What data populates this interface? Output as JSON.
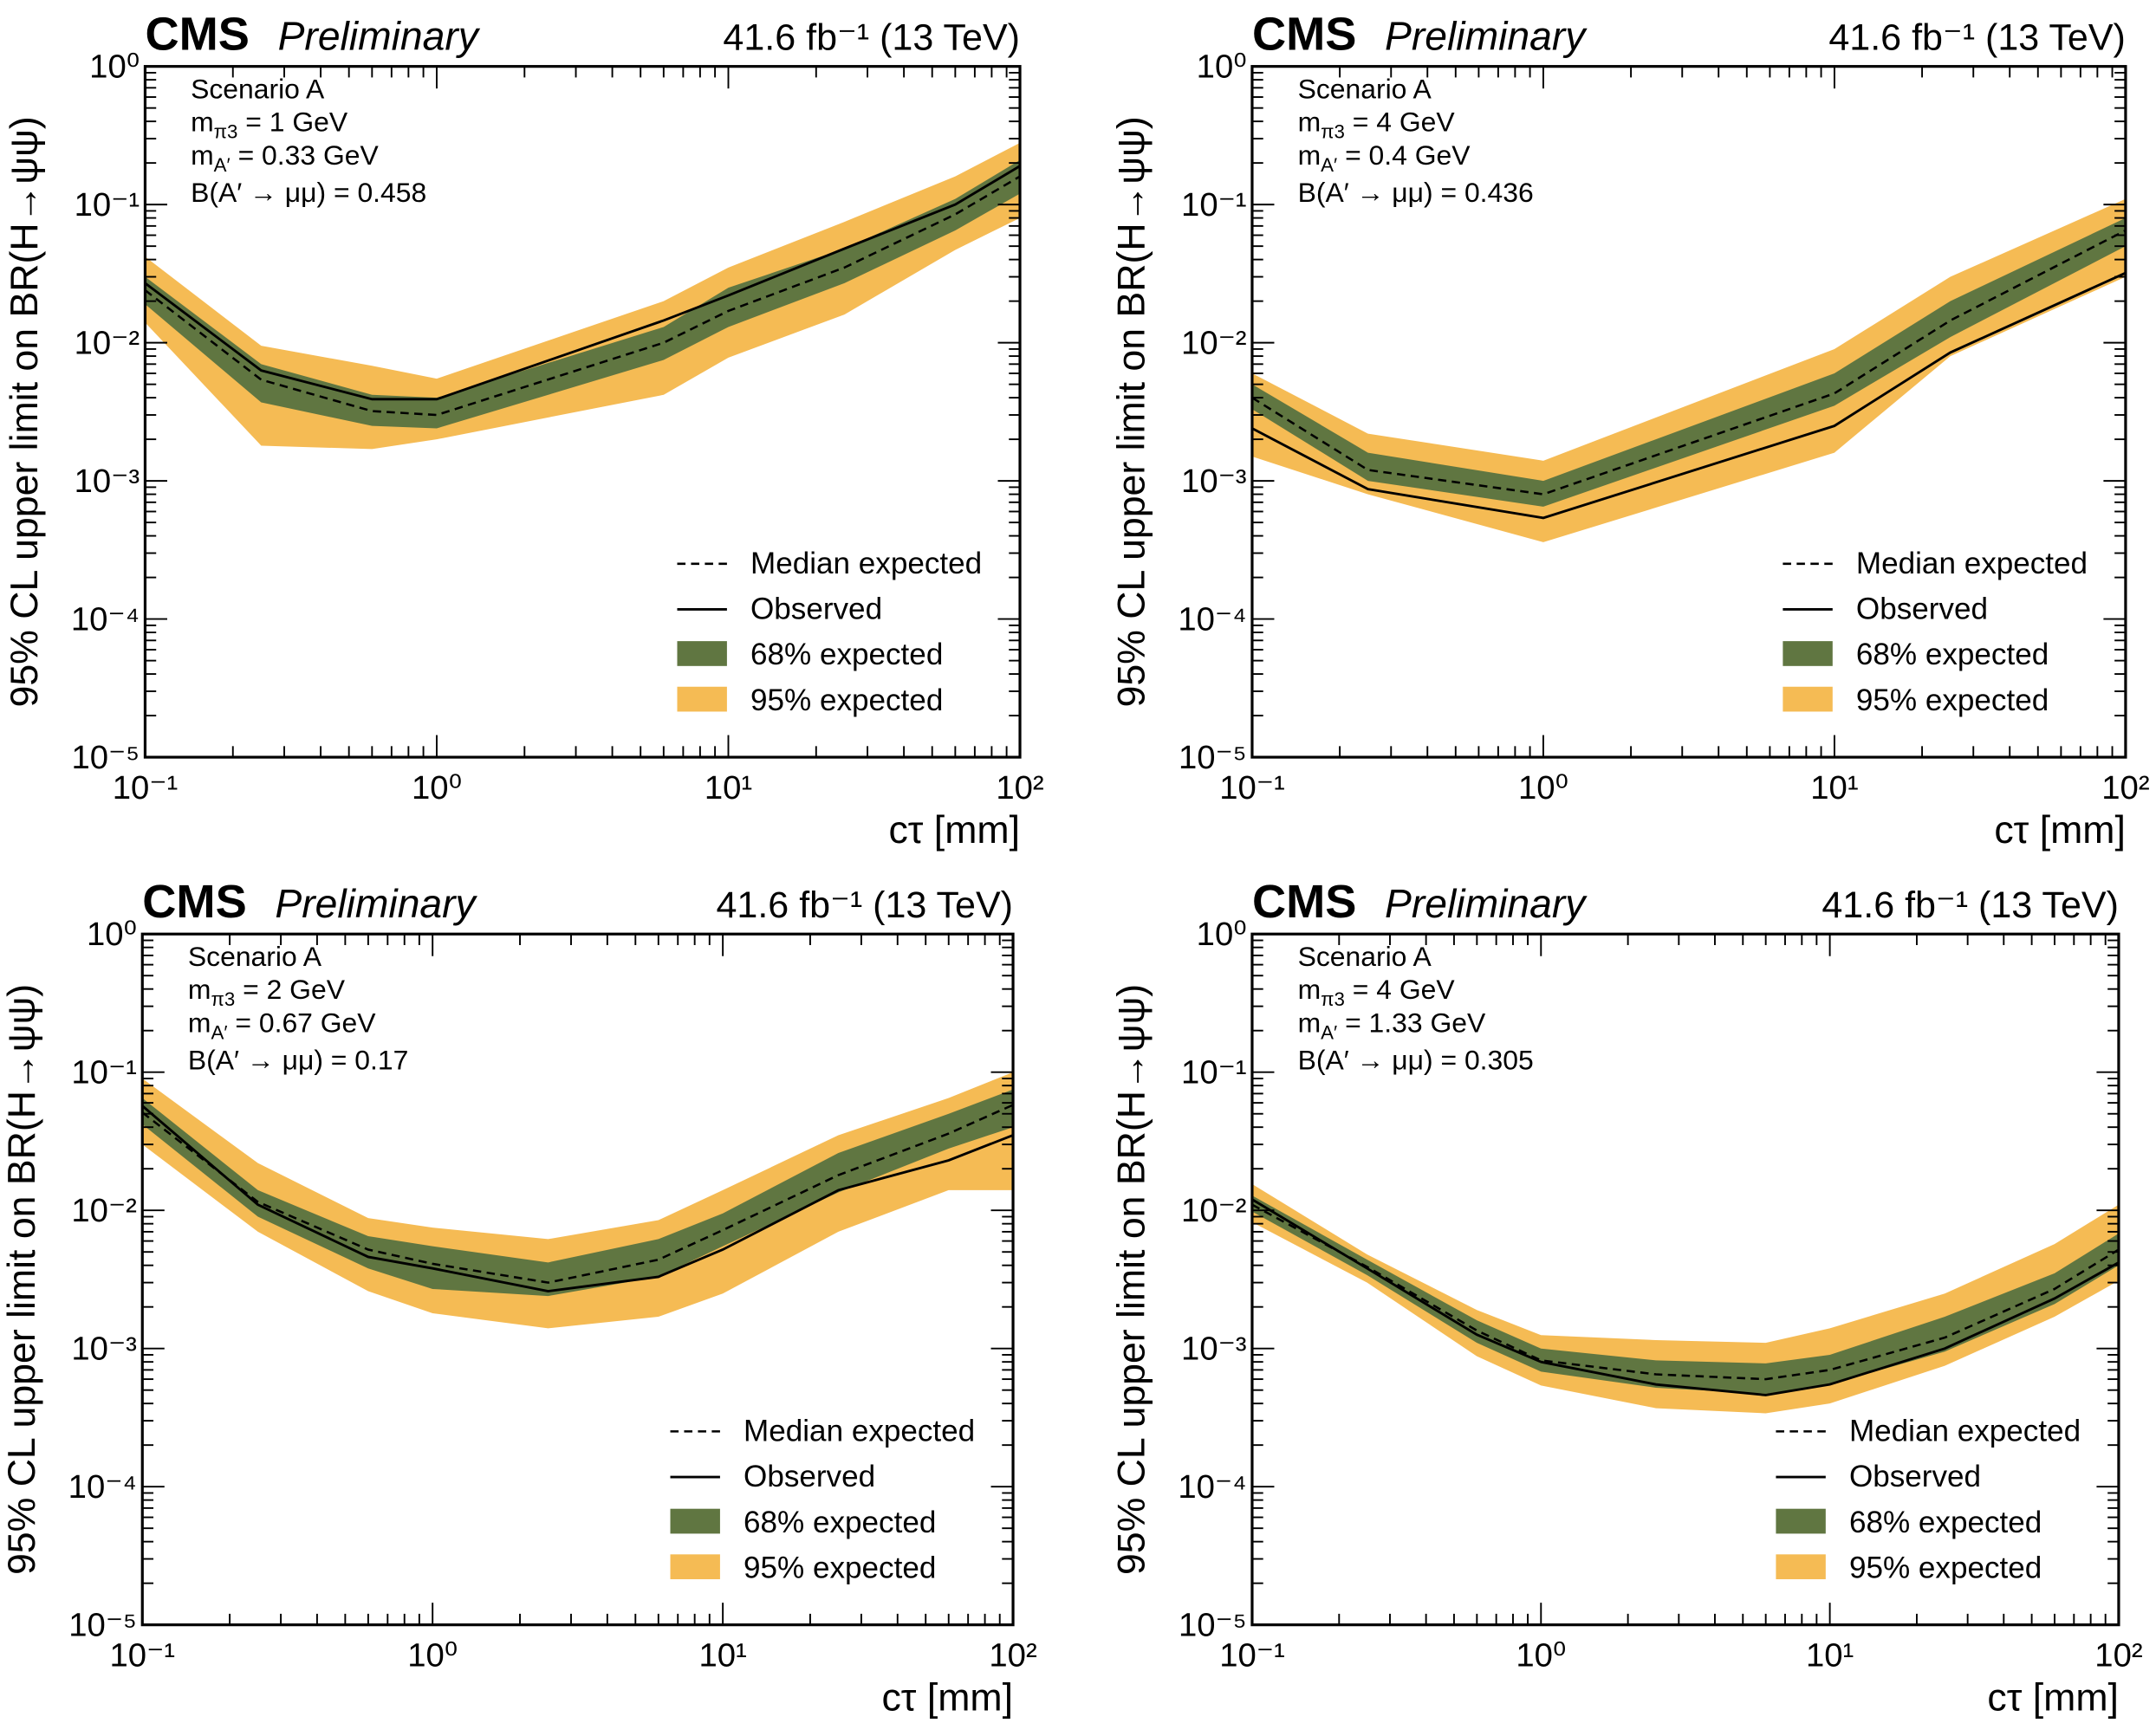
{
  "common": {
    "experiment": "CMS",
    "status": "Preliminary",
    "lumi": "41.6 fb⁻¹ (13 TeV)",
    "ylabel": "95% CL upper limit on BR(H→ψψ)",
    "xlabel": "cτ [mm]",
    "x_ticks": [
      "10⁻¹",
      "10⁰",
      "10¹",
      "10²"
    ],
    "y_ticks": [
      "10⁻⁵",
      "10⁻⁴",
      "10⁻³",
      "10⁻²",
      "10⁻¹",
      "10⁰"
    ],
    "mass_symbol": "m",
    "pi3_sub": "π3",
    "A_sub": "A′",
    "br_label": "B(A′ → μμ) = ",
    "legend": [
      "Median expected",
      "Observed",
      "68% expected",
      "95% expected"
    ],
    "colors": {
      "band68": "#607641",
      "band95": "#F5BB54",
      "lines": "#000000"
    }
  },
  "chart_data": [
    {
      "type": "line",
      "xscale": "log",
      "yscale": "log",
      "xlim": [
        0.1,
        100
      ],
      "ylim": [
        1e-05,
        1
      ],
      "legend_position": "bottom-right",
      "annotation": {
        "scenario": "Scenario A",
        "m_pi3": "= 1 GeV",
        "m_A": "= 0.33 GeV",
        "br": "0.458"
      },
      "x": [
        0.1,
        0.25,
        0.6,
        1,
        6,
        10,
        25,
        60,
        100
      ],
      "expected": [
        0.024,
        0.0054,
        0.0032,
        0.003,
        0.01,
        0.017,
        0.035,
        0.085,
        0.16
      ],
      "observed": [
        0.027,
        0.0063,
        0.0039,
        0.0039,
        0.0145,
        0.022,
        0.048,
        0.1,
        0.19
      ],
      "band68_lo": [
        0.019,
        0.0037,
        0.0025,
        0.0024,
        0.0075,
        0.013,
        0.027,
        0.065,
        0.12
      ],
      "band68_hi": [
        0.03,
        0.007,
        0.0042,
        0.004,
        0.013,
        0.025,
        0.048,
        0.11,
        0.21
      ],
      "band95_lo": [
        0.014,
        0.0018,
        0.0017,
        0.002,
        0.0042,
        0.0078,
        0.016,
        0.047,
        0.08
      ],
      "band95_hi": [
        0.042,
        0.0095,
        0.0068,
        0.0055,
        0.02,
        0.035,
        0.075,
        0.16,
        0.28
      ]
    },
    {
      "type": "line",
      "xscale": "log",
      "yscale": "log",
      "xlim": [
        0.1,
        100
      ],
      "ylim": [
        1e-05,
        1
      ],
      "legend_position": "bottom-right",
      "annotation": {
        "scenario": "Scenario A",
        "m_pi3": "= 4 GeV",
        "m_A": "= 0.4 GeV",
        "br": "0.436"
      },
      "x": [
        0.1,
        0.25,
        1,
        10,
        25,
        100
      ],
      "expected": [
        0.004,
        0.0012,
        0.0008,
        0.0043,
        0.0145,
        0.065
      ],
      "observed": [
        0.0024,
        0.00087,
        0.00054,
        0.0025,
        0.0085,
        0.032
      ],
      "band68_lo": [
        0.0033,
        0.001,
        0.00065,
        0.0035,
        0.011,
        0.05
      ],
      "band68_hi": [
        0.005,
        0.0016,
        0.001,
        0.006,
        0.02,
        0.08
      ],
      "band95_lo": [
        0.0015,
        0.0008,
        0.00036,
        0.0016,
        0.008,
        0.03
      ],
      "band95_hi": [
        0.006,
        0.0022,
        0.0014,
        0.009,
        0.03,
        0.11
      ]
    },
    {
      "type": "line",
      "xscale": "log",
      "yscale": "log",
      "xlim": [
        0.1,
        100
      ],
      "ylim": [
        1e-05,
        1
      ],
      "legend_position": "bottom-right",
      "annotation": {
        "scenario": "Scenario A",
        "m_pi3": "= 2 GeV",
        "m_A": "= 0.67 GeV",
        "br": "0.17"
      },
      "x": [
        0.1,
        0.25,
        0.6,
        1,
        2.5,
        6,
        10,
        25,
        60,
        100
      ],
      "expected": [
        0.051,
        0.0115,
        0.0052,
        0.0041,
        0.003,
        0.0044,
        0.0072,
        0.018,
        0.036,
        0.058
      ],
      "observed": [
        0.057,
        0.011,
        0.0046,
        0.0038,
        0.0026,
        0.0033,
        0.0052,
        0.014,
        0.023,
        0.035
      ],
      "band68_lo": [
        0.042,
        0.009,
        0.0038,
        0.0027,
        0.0024,
        0.0033,
        0.0055,
        0.0135,
        0.028,
        0.04
      ],
      "band68_hi": [
        0.065,
        0.014,
        0.0065,
        0.0055,
        0.0042,
        0.0062,
        0.0095,
        0.026,
        0.05,
        0.075
      ],
      "band95_lo": [
        0.03,
        0.007,
        0.0026,
        0.0018,
        0.0014,
        0.0017,
        0.0025,
        0.007,
        0.014,
        0.014
      ],
      "band95_hi": [
        0.09,
        0.022,
        0.0088,
        0.0075,
        0.0062,
        0.0085,
        0.014,
        0.035,
        0.065,
        0.1
      ]
    },
    {
      "type": "line",
      "xscale": "log",
      "yscale": "log",
      "xlim": [
        0.1,
        100
      ],
      "ylim": [
        1e-05,
        1
      ],
      "legend_position": "bottom-right",
      "annotation": {
        "scenario": "Scenario A",
        "m_pi3": "= 4 GeV",
        "m_A": "= 1.33 GeV",
        "br": "0.305"
      },
      "x": [
        0.1,
        0.25,
        0.6,
        1,
        2.5,
        6,
        10,
        25,
        60,
        100
      ],
      "expected": [
        0.011,
        0.0039,
        0.00135,
        0.00082,
        0.00065,
        0.0006,
        0.0007,
        0.0012,
        0.0027,
        0.0052
      ],
      "observed": [
        0.012,
        0.0038,
        0.00126,
        0.0008,
        0.00055,
        0.00046,
        0.00055,
        0.001,
        0.0023,
        0.0042
      ],
      "band68_lo": [
        0.0098,
        0.0034,
        0.0011,
        0.00068,
        0.00052,
        0.00047,
        0.00055,
        0.00095,
        0.0021,
        0.004
      ],
      "band68_hi": [
        0.0128,
        0.0044,
        0.0016,
        0.001,
        0.00082,
        0.00078,
        0.0009,
        0.0017,
        0.0035,
        0.0068
      ],
      "band95_lo": [
        0.0082,
        0.003,
        0.00088,
        0.00054,
        0.00037,
        0.00034,
        0.0004,
        0.00075,
        0.0017,
        0.0031
      ],
      "band95_hi": [
        0.0155,
        0.0048,
        0.0019,
        0.00125,
        0.00115,
        0.0011,
        0.0014,
        0.0025,
        0.0057,
        0.011
      ]
    }
  ]
}
